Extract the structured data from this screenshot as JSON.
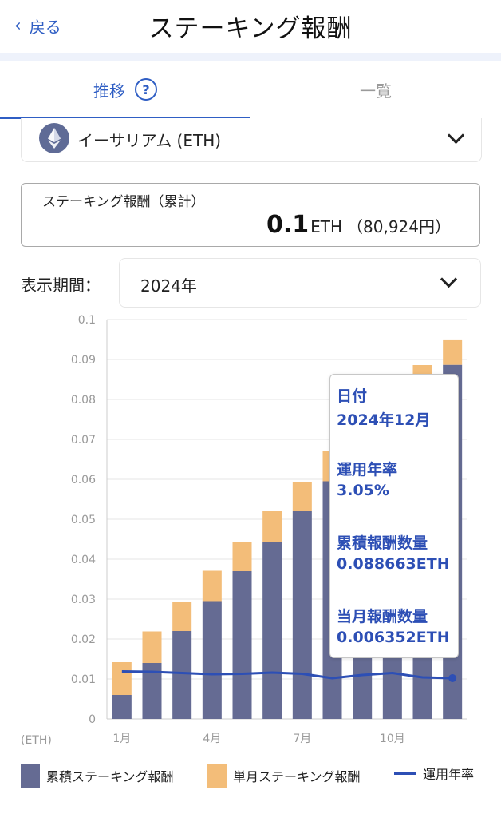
{
  "header": {
    "back_label": "戻る",
    "title": "ステーキング報酬"
  },
  "tabs": [
    {
      "label": "推移"
    },
    {
      "label": "一覧"
    }
  ],
  "coin_selector": {
    "name": "イーサリアム (ETH)"
  },
  "reward": {
    "label": "ステーキング報酬（累計）",
    "amount": "0.1",
    "unit": "ETH",
    "yen": "（80,924円）"
  },
  "period": {
    "label": "表示期間：",
    "value": "2024年"
  },
  "colors": {
    "accent": "#2f5ec4",
    "cumulative": "#656b93",
    "monthly": "#f3bd79",
    "rate_line": "#2d4fb5"
  },
  "chart_data": {
    "type": "bar",
    "unit_label": "(ETH)",
    "ylim": [
      0,
      0.1
    ],
    "yticks": [
      "0",
      "0.01",
      "0.02",
      "0.03",
      "0.04",
      "0.05",
      "0.06",
      "0.07",
      "0.08",
      "0.09",
      "0.1"
    ],
    "xtick_labels": [
      "1月",
      "",
      "",
      "4月",
      "",
      "",
      "7月",
      "",
      "",
      "10月",
      "",
      ""
    ],
    "categories": [
      "1月",
      "2月",
      "3月",
      "4月",
      "5月",
      "6月",
      "7月",
      "8月",
      "9月",
      "10月",
      "11月",
      "12月"
    ],
    "series": [
      {
        "name": "累積ステーキング報酬",
        "values": [
          0.006,
          0.014,
          0.022,
          0.0295,
          0.037,
          0.0443,
          0.052,
          0.0595,
          0.0665,
          0.0745,
          0.0815,
          0.088663
        ]
      },
      {
        "name": "単月ステーキング報酬",
        "values": [
          0.0082,
          0.0079,
          0.0074,
          0.0076,
          0.0073,
          0.0077,
          0.0073,
          0.0075,
          0.0072,
          0.0072,
          0.0071,
          0.006352
        ]
      },
      {
        "name": "運用年率",
        "values": [
          0.0119,
          0.0118,
          0.0115,
          0.0112,
          0.0113,
          0.0116,
          0.0113,
          0.0102,
          0.011,
          0.0115,
          0.0104,
          0.0102
        ]
      }
    ],
    "legend": [
      {
        "name": "累積ステーキング報酬"
      },
      {
        "name": "単月ステーキング報酬"
      },
      {
        "name": "運用年率"
      }
    ],
    "legend_position": "bottom",
    "grid": true
  },
  "tooltip": {
    "date_label": "日付",
    "date_value": "2024年12月",
    "rate_label": "運用年率",
    "rate_value": "3.05%",
    "cum_label": "累積報酬数量",
    "cum_value": "0.088663ETH",
    "month_label": "当月報酬数量",
    "month_value": "0.006352ETH"
  }
}
